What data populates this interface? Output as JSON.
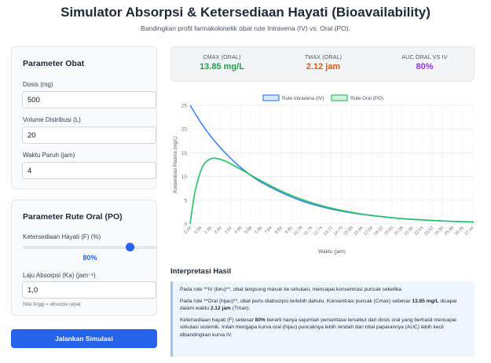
{
  "header": {
    "title": "Simulator Absorpsi & Ketersediaan Hayati (Bioavailability)",
    "subtitle": "Bandingkan profil farmakokinetik obat rute Intravena (IV) vs. Oral (PO)."
  },
  "drug_params": {
    "title": "Parameter Obat",
    "dose_label": "Dosis (mg)",
    "dose_value": "500",
    "vd_label": "Volume Distribusi (L)",
    "vd_value": "20",
    "half_life_label": "Waktu Paruh (jam)",
    "half_life_value": "4"
  },
  "oral_params": {
    "title": "Parameter Rute Oral (PO)",
    "f_label": "Ketersediaan Hayati (F) (%)",
    "f_fraction": 0.8,
    "f_display": "80%",
    "ka_label": "Laju Absorpsi (Ka) (jam⁻¹)",
    "ka_value": "1,0",
    "ka_hint": "Nilai tinggi = absorpsi cepat"
  },
  "run_button_label": "Jalankan Simulasi",
  "metrics": {
    "cmax_label": "CMAX (ORAL)",
    "cmax_value": "13.85 mg/L",
    "tmax_label": "TMAX (ORAL)",
    "tmax_value": "2.12 jam",
    "auc_label": "AUC ORAL VS IV",
    "auc_value": "80%",
    "colors": {
      "cmax": "#16a34a",
      "tmax": "#ea580c",
      "auc": "#9333ea"
    }
  },
  "chart_data": {
    "type": "line",
    "xlabel": "Waktu (jam)",
    "ylabel": "Konsentrasi Plasma (mg/L)",
    "ylim": [
      0,
      25
    ],
    "yticks": [
      0,
      5,
      10,
      15,
      20,
      25
    ],
    "xlim": [
      0,
      24
    ],
    "x_tick_labels": [
      "0.00",
      "0.98",
      "1.96",
      "2.94",
      "3.92",
      "4.90",
      "5.88",
      "6.86",
      "7.84",
      "8.82",
      "9.80",
      "10.78",
      "11.76",
      "12.74",
      "13.72",
      "14.70",
      "15.68",
      "16.66",
      "17.64",
      "18.62",
      "19.60",
      "20.58",
      "21.56",
      "22.54",
      "23.52",
      "24.50",
      "25.48",
      "26.46",
      "27.44"
    ],
    "grid": true,
    "legend_position": "top",
    "series": [
      {
        "name": "Rute Intravena (IV)",
        "color": "#3b82f6",
        "x": [
          0,
          1,
          2,
          3,
          4,
          5,
          6,
          8,
          10,
          12,
          14,
          16,
          18,
          20,
          22,
          24
        ],
        "y": [
          25,
          21.0,
          17.7,
          14.9,
          12.5,
          10.5,
          8.8,
          6.3,
          4.4,
          3.1,
          2.2,
          1.6,
          1.1,
          0.8,
          0.56,
          0.4
        ]
      },
      {
        "name": "Rute Oral (PO)",
        "color": "#22c55e",
        "x": [
          0,
          0.25,
          0.5,
          1,
          1.5,
          2.12,
          3,
          4,
          5,
          6,
          8,
          10,
          12,
          14,
          16,
          18,
          20,
          22,
          24
        ],
        "y": [
          0,
          4.4,
          7.8,
          11.8,
          13.4,
          13.85,
          13.2,
          11.9,
          10.5,
          9.1,
          6.6,
          4.7,
          3.3,
          2.3,
          1.6,
          1.1,
          0.8,
          0.56,
          0.4
        ]
      }
    ]
  },
  "interpretation": {
    "title": "Interpretasi Hasil",
    "p1": "Pada rute **IV (biru)**, obat langsung masuk ke sirkulasi, mencapai konsentrasi puncak seketika.",
    "p2_a": "Pada rute **Oral (hijau)**, obat perlu diabsorpsi terlebih dahulu. Konsentrasi puncak (Cmax) sebesar",
    "p2_cmax": "13.85 mg/L",
    "p2_b": "dicapai dalam waktu",
    "p2_tmax": "2.12 jam",
    "p2_c": "(Tmax).",
    "p3_a": "Ketersediaan hayati (F) sebesar",
    "p3_f": "80%",
    "p3_b": "berarti hanya sejumlah persentase tersebut dari dosis oral yang berhasil mencapai sirkulasi sistemik. Inilah mengapa kurva oral (hijau) puncaknya lebih rendah dan total paparannya (AUC) lebih kecil dibandingkan kurva IV."
  }
}
